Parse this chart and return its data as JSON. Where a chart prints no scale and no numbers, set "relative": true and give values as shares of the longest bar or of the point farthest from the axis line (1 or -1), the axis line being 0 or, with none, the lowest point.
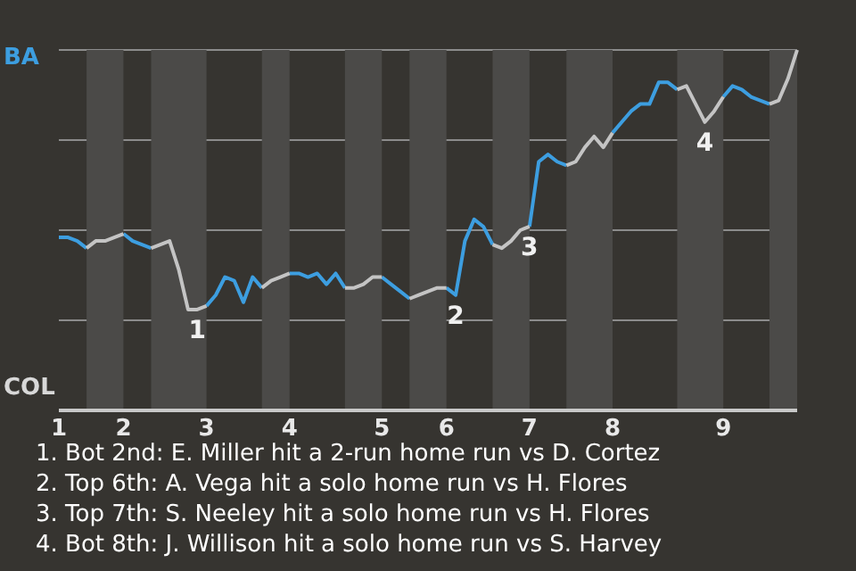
{
  "chart_data": {
    "type": "line",
    "relative": true,
    "categories": [
      "1",
      null,
      null,
      null,
      null,
      null,
      null,
      "2",
      null,
      null,
      null,
      null,
      null,
      null,
      null,
      null,
      "3",
      null,
      null,
      null,
      null,
      null,
      null,
      null,
      null,
      "4",
      null,
      null,
      null,
      null,
      null,
      null,
      null,
      null,
      null,
      "5",
      null,
      null,
      null,
      null,
      null,
      null,
      "6",
      null,
      null,
      null,
      null,
      null,
      null,
      null,
      null,
      "7",
      null,
      null,
      null,
      null,
      null,
      null,
      null,
      null,
      "8",
      null,
      null,
      null,
      null,
      null,
      null,
      null,
      null,
      null,
      null,
      null,
      "9",
      null,
      null,
      null,
      null,
      null,
      null,
      null,
      null
    ],
    "grid": "y",
    "marker": "none",
    "line_style": "solid",
    "series": [
      {
        "color": "#3d9ee0",
        "values": [
          0.48,
          0.48,
          0.47,
          0.45,
          null,
          null,
          null,
          0.49,
          0.47,
          0.46,
          0.45,
          null,
          null,
          null,
          null,
          null,
          0.29,
          0.32,
          0.37,
          0.36,
          0.3,
          0.37,
          0.34,
          null,
          null,
          0.38,
          0.38,
          0.37,
          0.38,
          0.35,
          0.38,
          0.34,
          null,
          null,
          null,
          0.37,
          0.35,
          0.33,
          0.31,
          null,
          null,
          null,
          0.34,
          0.32,
          0.47,
          0.53,
          0.51,
          0.46,
          null,
          null,
          null,
          0.51,
          0.69,
          0.71,
          0.69,
          0.68,
          null,
          null,
          null,
          null,
          0.77,
          0.8,
          0.83,
          0.85,
          0.85,
          0.91,
          0.91,
          0.89,
          null,
          null,
          null,
          null,
          0.87,
          0.9,
          0.89,
          0.87,
          0.86,
          0.85,
          null,
          null,
          null
        ]
      },
      {
        "color": "#c4c4c4",
        "values": [
          null,
          null,
          null,
          0.45,
          0.47,
          0.47,
          0.48,
          0.49,
          null,
          null,
          0.45,
          0.46,
          0.47,
          0.39,
          0.28,
          0.28,
          0.29,
          null,
          null,
          null,
          null,
          null,
          0.34,
          0.36,
          0.37,
          0.38,
          null,
          null,
          null,
          null,
          null,
          0.34,
          0.34,
          0.35,
          0.37,
          0.37,
          null,
          null,
          0.31,
          0.32,
          0.33,
          0.34,
          0.34,
          null,
          null,
          null,
          null,
          0.46,
          0.45,
          0.47,
          0.5,
          0.51,
          null,
          null,
          null,
          0.68,
          0.69,
          0.73,
          0.76,
          0.73,
          0.77,
          null,
          null,
          null,
          null,
          null,
          null,
          0.89,
          0.9,
          0.85,
          0.8,
          0.83,
          0.87,
          null,
          null,
          null,
          null,
          0.85,
          0.86,
          0.92,
          1
        ]
      }
    ],
    "annotations": [
      {
        "text": "1",
        "y": 0.28
      },
      {
        "text": "2",
        "y": 0.32
      },
      {
        "text": "3",
        "y": 0.51
      },
      {
        "text": "4",
        "y": 0.8
      },
      "BA",
      "COL",
      "1. Bot 2nd: E. Miller hit a 2-run home run vs D. Cortez",
      "2. Top 6th: A. Vega hit a solo home run vs H. Flores",
      "3. Top 7th: S. Neeley hit a solo home run vs H. Flores",
      "4. Bot 8th: J. Willison hit a solo home run vs S. Harvey"
    ]
  }
}
